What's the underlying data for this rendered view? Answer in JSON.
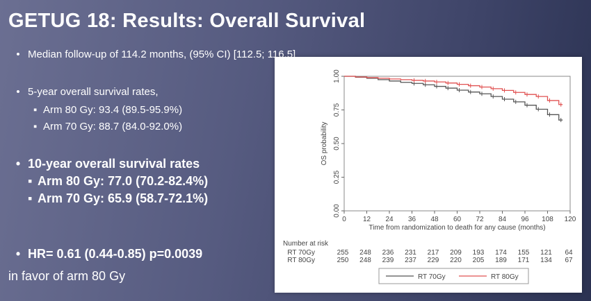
{
  "slide": {
    "title": "GETUG 18: Results: Overall Survival",
    "followup": "Median follow-up of 114.2 months, (95% CI) [112.5; 116.5]",
    "five_year_heading": "5-year overall survival rates,",
    "five_year_arm80": "Arm 80 Gy: 93.4 (89.5-95.9%)",
    "five_year_arm70": "Arm 70 Gy: 88.7 (84.0-92.0%)",
    "ten_year_heading": "10-year overall survival rates",
    "ten_year_arm80": "Arm 80 Gy: 77.0 (70.2-82.4%)",
    "ten_year_arm70": "Arm 70 Gy: 65.9 (58.7-72.1%)",
    "hr": "HR= 0.61 (0.44-0.85) p=0.0039",
    "favor": "in favor of arm 80 Gy"
  },
  "chart_data": {
    "type": "line",
    "title": "",
    "xlabel": "Time from randomization to death for any cause (months)",
    "ylabel": "OS probability",
    "xlim": [
      0,
      120
    ],
    "ylim": [
      0,
      1
    ],
    "x_ticks": [
      0,
      12,
      24,
      36,
      48,
      60,
      72,
      84,
      96,
      108,
      120
    ],
    "y_ticks": [
      "0.00",
      "0.25",
      "0.50",
      "0.75",
      "1.00"
    ],
    "grid": false,
    "legend_position": "bottom",
    "series": [
      {
        "name": "RT 70Gy",
        "color": "#555555",
        "x": [
          0,
          6,
          12,
          18,
          24,
          30,
          36,
          42,
          48,
          54,
          60,
          66,
          72,
          78,
          84,
          90,
          96,
          102,
          108,
          114
        ],
        "y": [
          1.0,
          0.993,
          0.985,
          0.975,
          0.965,
          0.955,
          0.947,
          0.937,
          0.925,
          0.912,
          0.897,
          0.883,
          0.87,
          0.85,
          0.83,
          0.81,
          0.785,
          0.755,
          0.715,
          0.675
        ]
      },
      {
        "name": "RT 80Gy",
        "color": "#e05050",
        "x": [
          0,
          6,
          12,
          18,
          24,
          30,
          36,
          42,
          48,
          54,
          60,
          66,
          72,
          78,
          84,
          90,
          96,
          102,
          108,
          114
        ],
        "y": [
          1.0,
          0.995,
          0.99,
          0.985,
          0.98,
          0.975,
          0.97,
          0.965,
          0.958,
          0.95,
          0.94,
          0.93,
          0.92,
          0.908,
          0.895,
          0.88,
          0.865,
          0.85,
          0.82,
          0.79
        ]
      }
    ],
    "risk_table": {
      "header": "Number at risk",
      "rows": [
        {
          "label": "RT 70Gy",
          "values": [
            "255",
            "248",
            "236",
            "231",
            "217",
            "209",
            "193",
            "174",
            "155",
            "121",
            "64"
          ]
        },
        {
          "label": "RT 80Gy",
          "values": [
            "250",
            "248",
            "239",
            "237",
            "229",
            "220",
            "205",
            "189",
            "171",
            "134",
            "67"
          ]
        }
      ]
    }
  }
}
